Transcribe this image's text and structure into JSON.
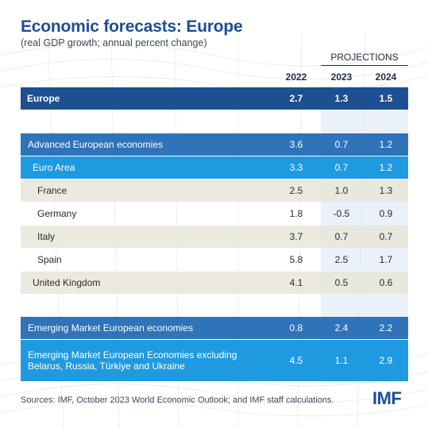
{
  "title": "Economic forecasts: Europe",
  "subtitle": "(real GDP growth; annual percent change)",
  "projections_label": "PROJECTIONS",
  "footer": "Sources: IMF, October 2023 World Economic Outlook; and IMF staff calculations.",
  "logo": "IMF",
  "colors": {
    "europe": "#1d4f91",
    "group": "#2f73b9",
    "subgroup": "#1f9ae0",
    "country_band": "#e9e6da"
  },
  "chart_data": {
    "type": "table",
    "columns": [
      "2022",
      "2023",
      "2024"
    ],
    "rows": [
      {
        "label": "Europe",
        "values": [
          "2.7",
          "1.3",
          "1.5"
        ]
      },
      {
        "label": "Advanced European economies",
        "values": [
          "3.6",
          "0.7",
          "1.2"
        ]
      },
      {
        "label": "Euro Area",
        "values": [
          "3.3",
          "0.7",
          "1.2"
        ]
      },
      {
        "label": "France",
        "values": [
          "2.5",
          "1.0",
          "1.3"
        ]
      },
      {
        "label": "Germany",
        "values": [
          "1.8",
          "-0.5",
          "0.9"
        ]
      },
      {
        "label": "Italy",
        "values": [
          "3.7",
          "0.7",
          "0.7"
        ]
      },
      {
        "label": "Spain",
        "values": [
          "5.8",
          "2.5",
          "1.7"
        ]
      },
      {
        "label": "United Kingdom",
        "values": [
          "4.1",
          "0.5",
          "0.6"
        ]
      },
      {
        "label": "Emerging Market European economies",
        "values": [
          "0.8",
          "2.4",
          "2.2"
        ]
      },
      {
        "label": "Emerging Market European Economies excluding Belarus, Russia, Türkiye and Ukraine",
        "values": [
          "4.5",
          "1.1",
          "2.9"
        ]
      }
    ]
  }
}
